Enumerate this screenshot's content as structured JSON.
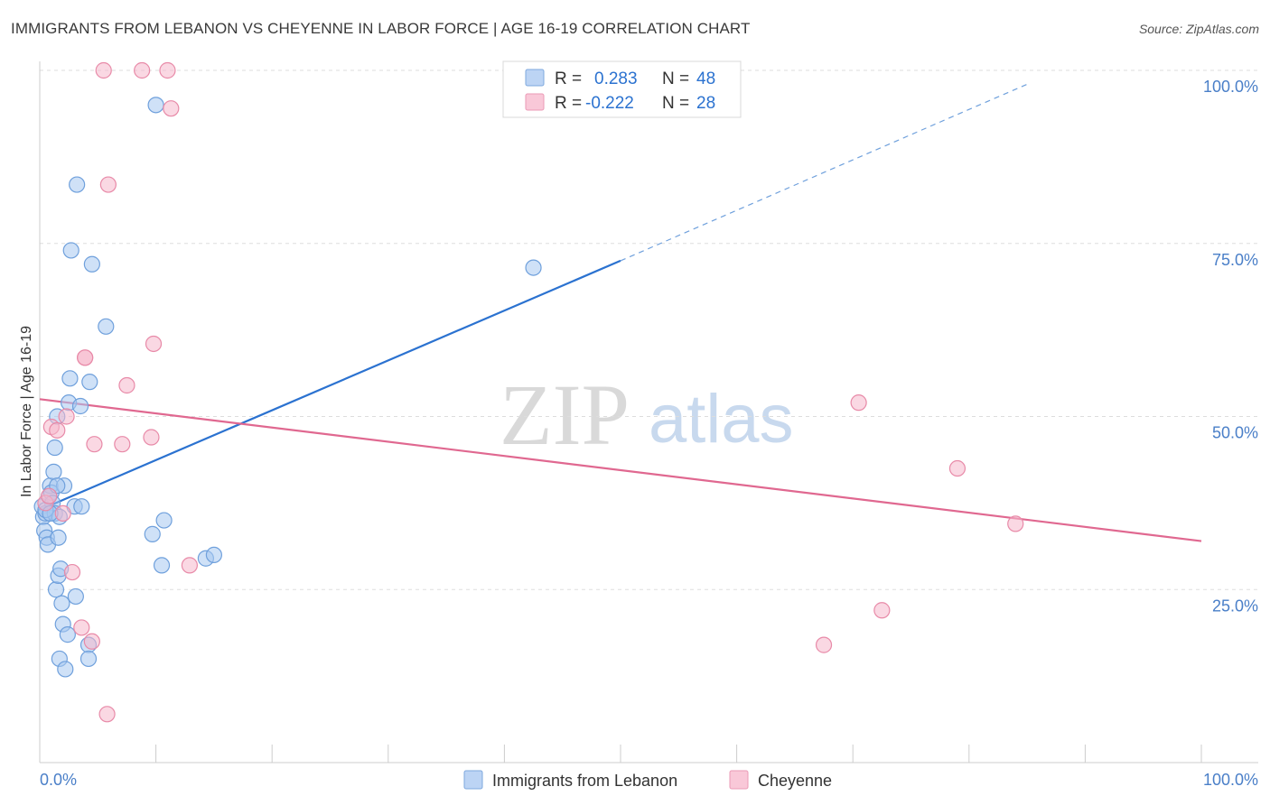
{
  "title": "IMMIGRANTS FROM LEBANON VS CHEYENNE IN LABOR FORCE | AGE 16-19 CORRELATION CHART",
  "source": "Source: ZipAtlas.com",
  "watermark": {
    "zip": "ZIP",
    "atlas": "atlas"
  },
  "legend_top": {
    "rows": [
      {
        "r_label": "R =",
        "r_value": "0.283",
        "n_label": "N =",
        "n_value": "48",
        "color": "#a8c8f0"
      },
      {
        "r_label": "R =",
        "r_value": "-0.222",
        "n_label": "N =",
        "n_value": "28",
        "color": "#f6b8cc"
      }
    ]
  },
  "chart_data": {
    "type": "scatter",
    "title": "IMMIGRANTS FROM LEBANON VS CHEYENNE IN LABOR FORCE | AGE 16-19 CORRELATION CHART",
    "xlabel": "",
    "ylabel": "In Labor Force | Age 16-19",
    "xlim": [
      0,
      100
    ],
    "ylim": [
      0,
      102
    ],
    "x_tick_labels": [
      "0.0%",
      "100.0%"
    ],
    "y_ticks": [
      25,
      50,
      75,
      100
    ],
    "y_tick_labels": [
      "25.0%",
      "50.0%",
      "75.0%",
      "100.0%"
    ],
    "grid": true,
    "legend_placement": "bottom-center",
    "series": [
      {
        "name": "Immigrants from Lebanon",
        "color": "#a8c8f0",
        "stroke": "#6fa0dc",
        "trend": {
          "x0": 0,
          "y0": 36.5,
          "x1": 50,
          "y1": 72.5,
          "dashed_to_x": 85,
          "dashed_to_y": 98,
          "color": "#2b72d0"
        },
        "points": [
          [
            0.2,
            37
          ],
          [
            0.3,
            35.5
          ],
          [
            0.4,
            33.5
          ],
          [
            0.5,
            36
          ],
          [
            0.6,
            32.5
          ],
          [
            0.7,
            31.5
          ],
          [
            0.8,
            38.5
          ],
          [
            0.9,
            40
          ],
          [
            1.0,
            39
          ],
          [
            1.1,
            37.5
          ],
          [
            1.2,
            42
          ],
          [
            1.3,
            36
          ],
          [
            1.3,
            45.5
          ],
          [
            1.4,
            25
          ],
          [
            1.5,
            50
          ],
          [
            1.6,
            27
          ],
          [
            1.6,
            32.5
          ],
          [
            1.7,
            35.5
          ],
          [
            1.7,
            15
          ],
          [
            1.8,
            28
          ],
          [
            1.9,
            23
          ],
          [
            2.0,
            20
          ],
          [
            2.1,
            40
          ],
          [
            2.2,
            13.5
          ],
          [
            2.4,
            18.5
          ],
          [
            2.5,
            52
          ],
          [
            2.6,
            55.5
          ],
          [
            2.7,
            74
          ],
          [
            3.0,
            37
          ],
          [
            3.1,
            24
          ],
          [
            3.2,
            83.5
          ],
          [
            3.5,
            51.5
          ],
          [
            3.6,
            37
          ],
          [
            4.2,
            17
          ],
          [
            4.2,
            15
          ],
          [
            4.3,
            55
          ],
          [
            4.5,
            72
          ],
          [
            5.7,
            63
          ],
          [
            9.7,
            33
          ],
          [
            10.0,
            95
          ],
          [
            10.5,
            28.5
          ],
          [
            10.7,
            35
          ],
          [
            14.3,
            29.5
          ],
          [
            15.0,
            30
          ],
          [
            42.5,
            71.5
          ],
          [
            0.5,
            36.5
          ],
          [
            0.9,
            36
          ],
          [
            1.5,
            40
          ]
        ]
      },
      {
        "name": "Cheyenne",
        "color": "#f6b8cc",
        "stroke": "#e88aa8",
        "trend": {
          "x0": 0,
          "y0": 52.5,
          "x1": 100,
          "y1": 32,
          "color": "#e06890"
        },
        "points": [
          [
            0.5,
            37.5
          ],
          [
            0.8,
            38.5
          ],
          [
            1.0,
            48.5
          ],
          [
            1.5,
            48
          ],
          [
            2.0,
            36
          ],
          [
            2.3,
            50
          ],
          [
            2.8,
            27.5
          ],
          [
            3.6,
            19.5
          ],
          [
            3.9,
            58.5
          ],
          [
            4.5,
            17.5
          ],
          [
            4.7,
            46
          ],
          [
            5.5,
            100
          ],
          [
            5.8,
            7
          ],
          [
            5.9,
            83.5
          ],
          [
            7.1,
            46
          ],
          [
            7.5,
            54.5
          ],
          [
            8.8,
            100
          ],
          [
            9.6,
            47
          ],
          [
            9.8,
            60.5
          ],
          [
            11.0,
            100
          ],
          [
            11.3,
            94.5
          ],
          [
            12.9,
            28.5
          ],
          [
            3.9,
            58.5
          ],
          [
            67.5,
            17
          ],
          [
            70.5,
            52
          ],
          [
            72.5,
            22
          ],
          [
            79.0,
            42.5
          ],
          [
            84.0,
            34.5
          ]
        ]
      }
    ]
  }
}
